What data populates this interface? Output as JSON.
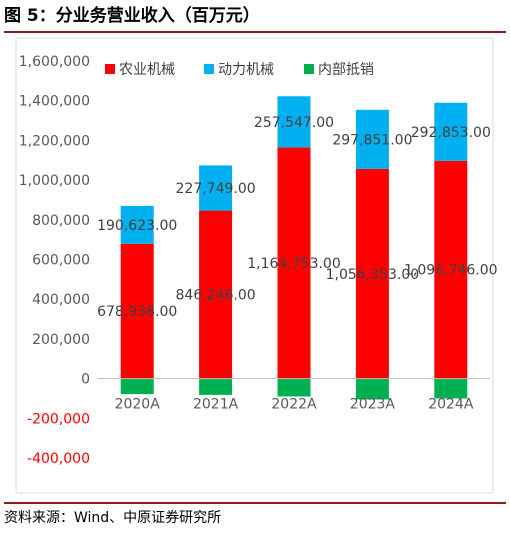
{
  "figure": {
    "title": "图 5：分业务营业收入（百万元）",
    "source": "资料来源：Wind、中原证券研究所"
  },
  "chart_data": {
    "type": "bar",
    "stacked": true,
    "categories": [
      "2020A",
      "2021A",
      "2022A",
      "2023A",
      "2024A"
    ],
    "series": [
      {
        "name": "农业机械",
        "color": "#ff0000",
        "values": [
          678938,
          846246,
          1164753,
          1056353,
          1096746
        ],
        "labels": [
          "678,938.00",
          "846,246.00",
          "1,164,753.00",
          "1,056,353.00",
          "1,096,746.00"
        ]
      },
      {
        "name": "动力机械",
        "color": "#00b0f0",
        "values": [
          190623,
          227749,
          257547,
          297851,
          292853
        ],
        "labels": [
          "190,623.00",
          "227,749.00",
          "257,547.00",
          "297,851.00",
          "292,853.00"
        ]
      },
      {
        "name": "内部抵销",
        "color": "#00b050",
        "values": [
          -78000,
          -82000,
          -90000,
          -105000,
          -100000
        ],
        "labels": []
      }
    ],
    "ylim": [
      -400000,
      1600000
    ],
    "yticks": [
      {
        "value": 1600000,
        "label": "1,600,000",
        "color": "#595959"
      },
      {
        "value": 1400000,
        "label": "1,400,000",
        "color": "#595959"
      },
      {
        "value": 1200000,
        "label": "1,200,000",
        "color": "#595959"
      },
      {
        "value": 1000000,
        "label": "1,000,000",
        "color": "#595959"
      },
      {
        "value": 800000,
        "label": "800,000",
        "color": "#595959"
      },
      {
        "value": 600000,
        "label": "600,000",
        "color": "#595959"
      },
      {
        "value": 400000,
        "label": "400,000",
        "color": "#595959"
      },
      {
        "value": 200000,
        "label": "200,000",
        "color": "#595959"
      },
      {
        "value": 0,
        "label": "0",
        "color": "#595959"
      },
      {
        "value": -200000,
        "label": "-200,000",
        "color": "#ff0000"
      },
      {
        "value": -400000,
        "label": "-400,000",
        "color": "#ff0000"
      }
    ],
    "grid": false,
    "legend": "top-left"
  }
}
